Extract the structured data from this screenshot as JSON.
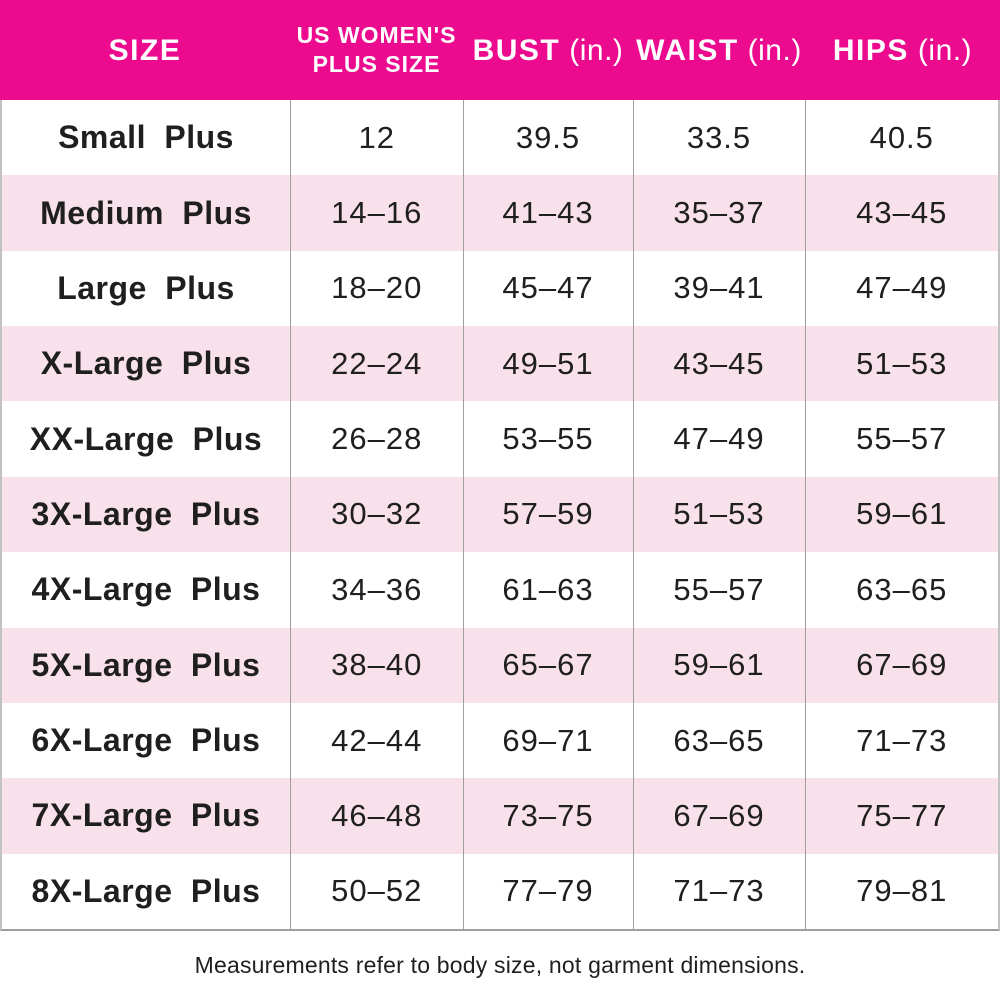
{
  "colors": {
    "header_bg": "#EC0A8E",
    "header_text": "#FFFFFF",
    "row_alt_bg": "#F9E1EC",
    "row_bg": "#FFFFFF",
    "body_text": "#1F1F1F",
    "grid_line": "#9E9E9E",
    "outer_border": "#C2C2C2"
  },
  "header": {
    "columns": [
      {
        "id": "size",
        "label": "SIZE",
        "label2": "",
        "unit": ""
      },
      {
        "id": "plus_size",
        "label": "US WOMEN'S",
        "label2": "PLUS SIZE",
        "unit": ""
      },
      {
        "id": "bust",
        "label": "BUST",
        "label2": "",
        "unit": "(in.)"
      },
      {
        "id": "waist",
        "label": "WAIST",
        "label2": "",
        "unit": "(in.)"
      },
      {
        "id": "hips",
        "label": "HIPS",
        "label2": "",
        "unit": "(in.)"
      }
    ]
  },
  "rows": [
    {
      "size": "Small Plus",
      "plus_size": "12",
      "bust": "39.5",
      "waist": "33.5",
      "hips": "40.5"
    },
    {
      "size": "Medium Plus",
      "plus_size": "14–16",
      "bust": "41–43",
      "waist": "35–37",
      "hips": "43–45"
    },
    {
      "size": "Large Plus",
      "plus_size": "18–20",
      "bust": "45–47",
      "waist": "39–41",
      "hips": "47–49"
    },
    {
      "size": "X-Large Plus",
      "plus_size": "22–24",
      "bust": "49–51",
      "waist": "43–45",
      "hips": "51–53"
    },
    {
      "size": "XX-Large Plus",
      "plus_size": "26–28",
      "bust": "53–55",
      "waist": "47–49",
      "hips": "55–57"
    },
    {
      "size": "3X-Large Plus",
      "plus_size": "30–32",
      "bust": "57–59",
      "waist": "51–53",
      "hips": "59–61"
    },
    {
      "size": "4X-Large Plus",
      "plus_size": "34–36",
      "bust": "61–63",
      "waist": "55–57",
      "hips": "63–65"
    },
    {
      "size": "5X-Large Plus",
      "plus_size": "38–40",
      "bust": "65–67",
      "waist": "59–61",
      "hips": "67–69"
    },
    {
      "size": "6X-Large Plus",
      "plus_size": "42–44",
      "bust": "69–71",
      "waist": "63–65",
      "hips": "71–73"
    },
    {
      "size": "7X-Large Plus",
      "plus_size": "46–48",
      "bust": "73–75",
      "waist": "67–69",
      "hips": "75–77"
    },
    {
      "size": "8X-Large Plus",
      "plus_size": "50–52",
      "bust": "77–79",
      "waist": "71–73",
      "hips": "79–81"
    }
  ],
  "footnote": "Measurements refer to body size, not garment dimensions.",
  "chart_data": {
    "type": "table",
    "title": "US Women's Plus Size Chart",
    "columns": [
      "SIZE",
      "US WOMEN'S PLUS SIZE",
      "BUST (in.)",
      "WAIST (in.)",
      "HIPS (in.)"
    ],
    "rows": [
      [
        "Small Plus",
        "12",
        "39.5",
        "33.5",
        "40.5"
      ],
      [
        "Medium Plus",
        "14–16",
        "41–43",
        "35–37",
        "43–45"
      ],
      [
        "Large Plus",
        "18–20",
        "45–47",
        "39–41",
        "47–49"
      ],
      [
        "X-Large Plus",
        "22–24",
        "49–51",
        "43–45",
        "51–53"
      ],
      [
        "XX-Large Plus",
        "26–28",
        "53–55",
        "47–49",
        "55–57"
      ],
      [
        "3X-Large Plus",
        "30–32",
        "57–59",
        "51–53",
        "59–61"
      ],
      [
        "4X-Large Plus",
        "34–36",
        "61–63",
        "55–57",
        "63–65"
      ],
      [
        "5X-Large Plus",
        "38–40",
        "65–67",
        "59–61",
        "67–69"
      ],
      [
        "6X-Large Plus",
        "42–44",
        "69–71",
        "63–65",
        "71–73"
      ],
      [
        "7X-Large Plus",
        "46–48",
        "73–75",
        "67–69",
        "75–77"
      ],
      [
        "8X-Large Plus",
        "50–52",
        "77–79",
        "71–73",
        "79–81"
      ]
    ],
    "notes": "Measurements refer to body size, not garment dimensions."
  }
}
